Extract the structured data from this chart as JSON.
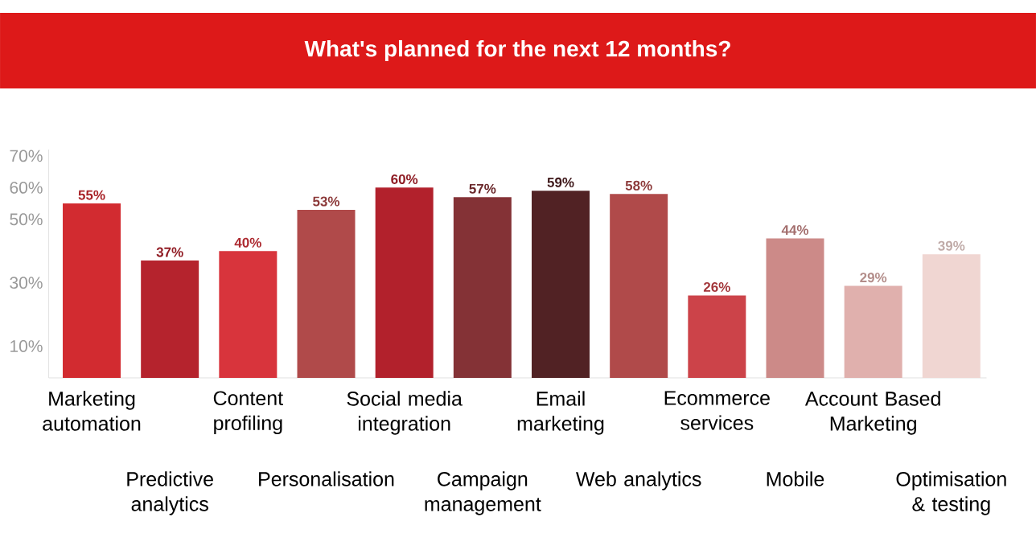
{
  "chart_data": {
    "type": "bar",
    "title": "What's planned for the next 12 months?",
    "categories": [
      "Marketing automation",
      "Predictive analytics",
      "Content profiling",
      "Personalisation",
      "Social media integration",
      "Campaign management",
      "Email marketing",
      "Web analytics",
      "Ecommerce services",
      "Mobile",
      "Account Based Marketing",
      "Optimisation & testing"
    ],
    "values": [
      55,
      37,
      40,
      53,
      60,
      57,
      59,
      58,
      26,
      44,
      29,
      39
    ],
    "value_labels": [
      "55%",
      "37%",
      "40%",
      "53%",
      "60%",
      "57%",
      "59%",
      "58%",
      "26%",
      "44%",
      "29%",
      "39%"
    ],
    "colors": [
      "#d22b30",
      "#b5232d",
      "#d8343c",
      "#b04a4a",
      "#b2212c",
      "#843236",
      "#512224",
      "#b04a4a",
      "#cc4349",
      "#cc8a88",
      "#e0b0ad",
      "#f0d6d2"
    ],
    "ylim": [
      0,
      72
    ],
    "yticks": [
      {
        "value": 10,
        "label": "10%"
      },
      {
        "value": 30,
        "label": "30%"
      },
      {
        "value": 50,
        "label": "50%"
      },
      {
        "value": 60,
        "label": "60%"
      },
      {
        "value": 70,
        "label": "70%"
      }
    ],
    "grid": false
  }
}
